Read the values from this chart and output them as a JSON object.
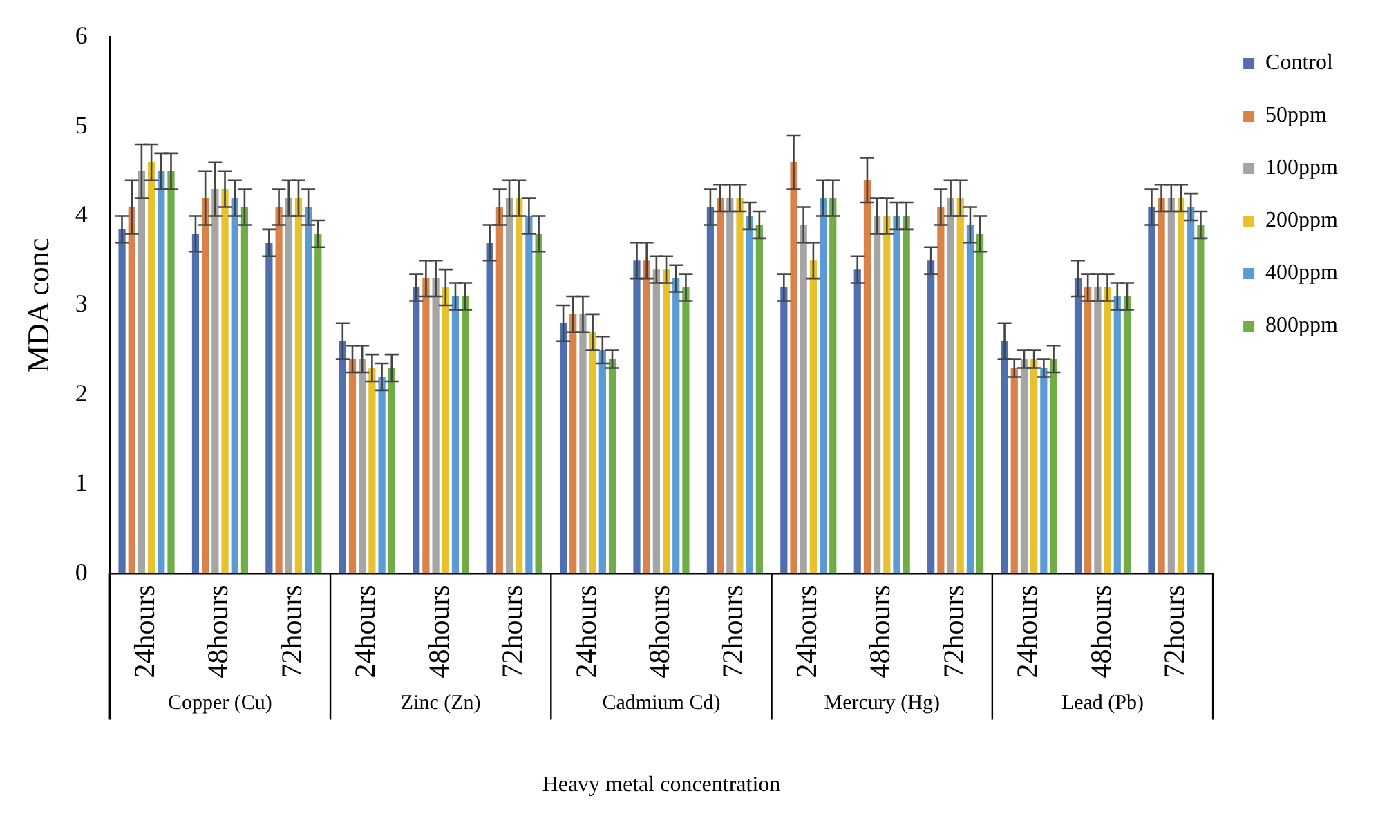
{
  "chart_data": {
    "type": "bar",
    "xlabel": "Heavy metal concentration",
    "ylabel": "MDA conc",
    "categories": [
      "24hours",
      "48hours",
      "72hours",
      "24hours",
      "48hours",
      "72hours",
      "24hours",
      "48hours",
      "72hours",
      "24hours",
      "48hours",
      "72hours",
      "24hours",
      "48hours",
      "72hours"
    ],
    "annotations": [
      "Copper (Cu)",
      "Zinc (Zn)",
      "Cadmium Cd)",
      "Mercury (Hg)",
      "Lead (Pb)"
    ],
    "series": [
      {
        "name": "Control",
        "color": "#4f6fb0",
        "values": [
          3.85,
          3.8,
          3.7,
          2.6,
          3.2,
          3.7,
          2.8,
          3.5,
          4.1,
          3.2,
          3.4,
          3.5,
          2.6,
          3.3,
          4.1
        ],
        "errors": [
          0.15,
          0.2,
          0.15,
          0.2,
          0.15,
          0.2,
          0.2,
          0.2,
          0.2,
          0.15,
          0.15,
          0.15,
          0.2,
          0.2,
          0.2
        ]
      },
      {
        "name": "50ppm",
        "color": "#d9834a",
        "values": [
          4.1,
          4.2,
          4.1,
          2.4,
          3.3,
          4.1,
          2.9,
          3.5,
          4.2,
          4.6,
          4.4,
          4.1,
          2.3,
          3.2,
          4.2
        ],
        "errors": [
          0.3,
          0.3,
          0.2,
          0.15,
          0.2,
          0.2,
          0.2,
          0.2,
          0.15,
          0.3,
          0.25,
          0.2,
          0.1,
          0.15,
          0.15
        ]
      },
      {
        "name": "100ppm",
        "color": "#a5a5a5",
        "values": [
          4.5,
          4.3,
          4.2,
          2.4,
          3.3,
          4.2,
          2.9,
          3.4,
          4.2,
          3.9,
          4.0,
          4.2,
          2.4,
          3.2,
          4.2
        ],
        "errors": [
          0.3,
          0.3,
          0.2,
          0.15,
          0.2,
          0.2,
          0.2,
          0.15,
          0.15,
          0.2,
          0.2,
          0.2,
          0.1,
          0.15,
          0.15
        ]
      },
      {
        "name": "200ppm",
        "color": "#e8c12e",
        "values": [
          4.6,
          4.3,
          4.2,
          2.3,
          3.2,
          4.2,
          2.7,
          3.4,
          4.2,
          3.5,
          4.0,
          4.2,
          2.4,
          3.2,
          4.2
        ],
        "errors": [
          0.2,
          0.2,
          0.2,
          0.15,
          0.2,
          0.2,
          0.2,
          0.15,
          0.15,
          0.2,
          0.2,
          0.2,
          0.1,
          0.15,
          0.15
        ]
      },
      {
        "name": "400ppm",
        "color": "#5b9bd5",
        "values": [
          4.5,
          4.2,
          4.1,
          2.2,
          3.1,
          4.0,
          2.5,
          3.3,
          4.0,
          4.2,
          4.0,
          3.9,
          2.3,
          3.1,
          4.1
        ],
        "errors": [
          0.2,
          0.2,
          0.2,
          0.15,
          0.15,
          0.2,
          0.15,
          0.15,
          0.15,
          0.2,
          0.15,
          0.2,
          0.1,
          0.15,
          0.15
        ]
      },
      {
        "name": "800ppm",
        "color": "#70ad47",
        "values": [
          4.5,
          4.1,
          3.8,
          2.3,
          3.1,
          3.8,
          2.4,
          3.2,
          3.9,
          4.2,
          4.0,
          3.8,
          2.4,
          3.1,
          3.9
        ],
        "errors": [
          0.2,
          0.2,
          0.15,
          0.15,
          0.15,
          0.2,
          0.1,
          0.15,
          0.15,
          0.2,
          0.15,
          0.2,
          0.15,
          0.15,
          0.15
        ]
      }
    ],
    "ylim": [
      0,
      6
    ],
    "yticks": [
      0,
      1,
      2,
      3,
      4,
      5,
      6
    ],
    "grid": false,
    "legend": "top right"
  }
}
